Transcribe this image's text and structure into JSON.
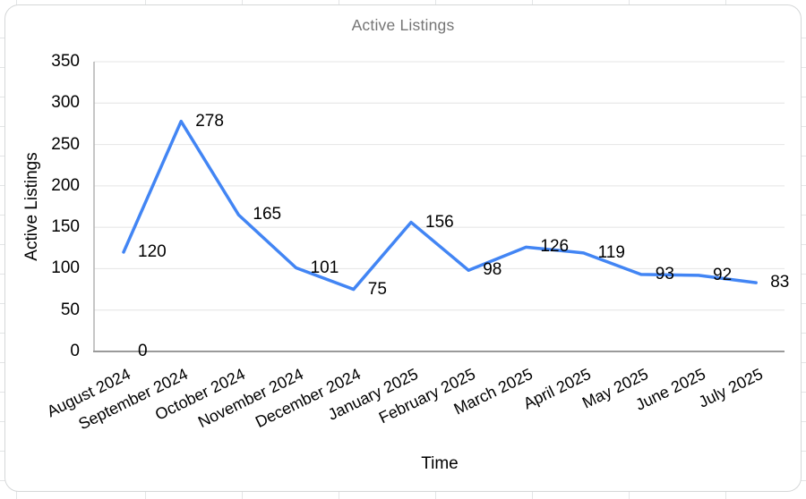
{
  "chart": {
    "title": "Active Listings",
    "xlabel": "Time",
    "ylabel": "Active Listings"
  },
  "chart_data": {
    "type": "line",
    "title": "Active Listings",
    "xlabel": "Time",
    "ylabel": "Active Listings",
    "categories": [
      "August 2024",
      "September 2024",
      "October 2024",
      "November 2024",
      "December 2024",
      "January 2025",
      "February 2025",
      "March 2025",
      "April 2025",
      "May 2025",
      "June 2025",
      "July 2025"
    ],
    "series": [
      {
        "name": "Active Listings",
        "values": [
          120,
          278,
          165,
          101,
          75,
          156,
          98,
          126,
          119,
          93,
          92,
          83
        ]
      }
    ],
    "annotations": [
      {
        "text": "0",
        "category": "August 2024",
        "category_index": 0,
        "value": 0
      }
    ],
    "data_labels_visible": true,
    "markers": "none",
    "ylim": [
      0,
      350
    ],
    "yticks": [
      0,
      50,
      100,
      150,
      200,
      250,
      300,
      350
    ],
    "x_label_rotation_deg": -26,
    "grid": "horizontal",
    "legend": "none",
    "colors": {
      "line": "#4285f4",
      "title_text": "#757575",
      "label_text": "#000000",
      "gridline": "#e4e4e4",
      "y_axis_line": "#b3b3b3",
      "x_axis_line": "#9a9a9a"
    }
  }
}
